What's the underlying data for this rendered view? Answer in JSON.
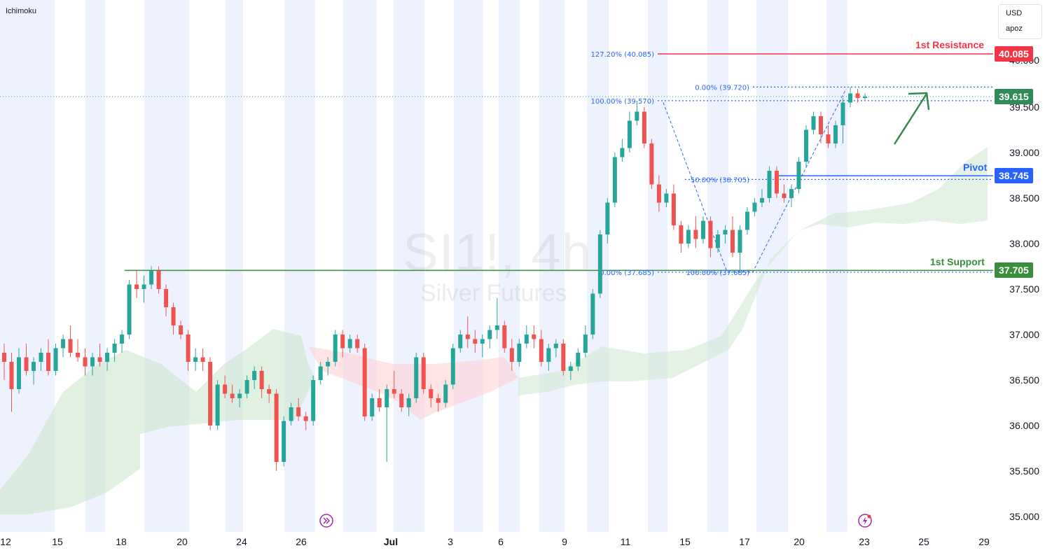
{
  "indicator": "Ichimoku",
  "currency": "USD",
  "scale_mode": "apoz",
  "watermark": {
    "symbol": "SI1!, 4h",
    "name": "Silver Futures"
  },
  "colors": {
    "up": "#26a69a",
    "down": "#ef5350",
    "resistance": "#f23645",
    "pivot": "#2962ff",
    "support": "#388e3c",
    "current": "#2e8b57",
    "fib": "#2962ff",
    "cloud_bull": "#c8e6c9",
    "cloud_bear": "#ffcdd2",
    "session_band": "#e8edfd",
    "arrow": "#2e8b4a"
  },
  "levels": {
    "resistance": {
      "label": "1st Resistance",
      "value": "40.085"
    },
    "pivot": {
      "label": "Pivot",
      "value": "38.745"
    },
    "support": {
      "label": "1st Support",
      "value": "37.705"
    },
    "current": {
      "value": "39.615"
    }
  },
  "fib_labels": {
    "ext": "127.20% (40.085)",
    "top_a": "100.00% (39.570)",
    "top_b": "0.00% (39.720)",
    "mid": "50.00% (38.705)",
    "low_a": "0.00% (37.685)",
    "low_b": "100.00% (37.685)"
  },
  "icons": {
    "left": "fast-forward-icon",
    "right": "lightning-icon"
  },
  "chart_data": {
    "type": "candlestick",
    "title": "SI1!, 4h",
    "subtitle": "Silver Futures",
    "y_axis": {
      "ticks": [
        "35.000",
        "35.500",
        "36.000",
        "36.500",
        "37.000",
        "37.500",
        "38.000",
        "38.500",
        "39.000",
        "39.500",
        "40.000"
      ],
      "ylim": [
        34.8,
        40.4
      ]
    },
    "x_axis": {
      "ticks": [
        "12",
        "15",
        "18",
        "20",
        "24",
        "26",
        "Jul",
        "3",
        "6",
        "9",
        "11",
        "15",
        "17",
        "20",
        "23",
        "25",
        "29"
      ]
    },
    "horizontal_levels": [
      {
        "name": "1st Resistance",
        "value": 40.085
      },
      {
        "name": "Pivot",
        "value": 38.745
      },
      {
        "name": "1st Support",
        "value": 37.705
      }
    ],
    "last_price": 39.615,
    "fibonacci": [
      {
        "label": "127.20%",
        "value": 40.085
      },
      {
        "label": "100.00%",
        "value": 39.57
      },
      {
        "label": "0.00%",
        "value": 39.72
      },
      {
        "label": "50.00%",
        "value": 38.705
      },
      {
        "label": "0.00%",
        "value": 37.685
      },
      {
        "label": "100.00%",
        "value": 37.685
      }
    ],
    "candles": [
      [
        36.8,
        36.9,
        36.5,
        36.7
      ],
      [
        36.7,
        36.8,
        36.15,
        36.4
      ],
      [
        36.4,
        36.85,
        36.35,
        36.75
      ],
      [
        36.75,
        36.9,
        36.55,
        36.6
      ],
      [
        36.6,
        36.75,
        36.45,
        36.7
      ],
      [
        36.7,
        36.85,
        36.6,
        36.8
      ],
      [
        36.8,
        36.95,
        36.55,
        36.6
      ],
      [
        36.6,
        36.9,
        36.55,
        36.85
      ],
      [
        36.85,
        37.0,
        36.75,
        36.95
      ],
      [
        36.95,
        37.1,
        36.75,
        36.8
      ],
      [
        36.8,
        36.95,
        36.7,
        36.75
      ],
      [
        36.75,
        36.85,
        36.55,
        36.65
      ],
      [
        36.65,
        36.8,
        36.55,
        36.75
      ],
      [
        36.75,
        36.9,
        36.65,
        36.7
      ],
      [
        36.7,
        36.85,
        36.6,
        36.8
      ],
      [
        36.8,
        36.95,
        36.7,
        36.9
      ],
      [
        36.9,
        37.05,
        36.8,
        37.0
      ],
      [
        37.0,
        37.6,
        36.95,
        37.55
      ],
      [
        37.55,
        37.7,
        37.4,
        37.5
      ],
      [
        37.5,
        37.65,
        37.35,
        37.55
      ],
      [
        37.55,
        37.75,
        37.5,
        37.7
      ],
      [
        37.7,
        37.75,
        37.45,
        37.5
      ],
      [
        37.5,
        37.55,
        37.2,
        37.3
      ],
      [
        37.3,
        37.35,
        37.0,
        37.1
      ],
      [
        37.1,
        37.15,
        36.95,
        37.0
      ],
      [
        37.0,
        37.05,
        36.6,
        36.7
      ],
      [
        36.7,
        36.85,
        36.6,
        36.75
      ],
      [
        36.75,
        36.85,
        36.6,
        36.7
      ],
      [
        36.7,
        36.75,
        35.95,
        36.0
      ],
      [
        36.0,
        36.5,
        35.95,
        36.45
      ],
      [
        36.45,
        36.55,
        36.3,
        36.35
      ],
      [
        36.35,
        36.45,
        36.25,
        36.3
      ],
      [
        36.3,
        36.4,
        36.2,
        36.35
      ],
      [
        36.35,
        36.55,
        36.3,
        36.5
      ],
      [
        36.5,
        36.65,
        36.4,
        36.6
      ],
      [
        36.6,
        36.65,
        36.3,
        36.4
      ],
      [
        36.4,
        36.45,
        36.25,
        36.35
      ],
      [
        36.35,
        36.4,
        35.5,
        35.6
      ],
      [
        35.6,
        36.1,
        35.55,
        36.05
      ],
      [
        36.05,
        36.25,
        36.0,
        36.2
      ],
      [
        36.2,
        36.3,
        36.05,
        36.1
      ],
      [
        36.1,
        36.15,
        35.95,
        36.05
      ],
      [
        36.05,
        36.55,
        36.0,
        36.5
      ],
      [
        36.5,
        36.7,
        36.45,
        36.65
      ],
      [
        36.65,
        36.75,
        36.55,
        36.7
      ],
      [
        36.7,
        37.05,
        36.65,
        37.0
      ],
      [
        37.0,
        37.05,
        36.75,
        36.85
      ],
      [
        36.85,
        37.0,
        36.8,
        36.95
      ],
      [
        36.95,
        37.0,
        36.8,
        36.85
      ],
      [
        36.85,
        36.9,
        36.05,
        36.1
      ],
      [
        36.1,
        36.35,
        36.05,
        36.3
      ],
      [
        36.3,
        36.4,
        36.15,
        36.2
      ],
      [
        36.2,
        36.45,
        35.6,
        36.4
      ],
      [
        36.4,
        36.6,
        36.3,
        36.35
      ],
      [
        36.35,
        36.4,
        36.15,
        36.2
      ],
      [
        36.2,
        36.35,
        36.1,
        36.3
      ],
      [
        36.3,
        36.8,
        36.25,
        36.75
      ],
      [
        36.75,
        36.8,
        36.35,
        36.4
      ],
      [
        36.4,
        36.45,
        36.2,
        36.3
      ],
      [
        36.3,
        36.35,
        36.15,
        36.25
      ],
      [
        36.25,
        36.5,
        36.2,
        36.45
      ],
      [
        36.45,
        36.9,
        36.4,
        36.85
      ],
      [
        36.85,
        37.05,
        36.8,
        37.0
      ],
      [
        37.0,
        37.2,
        36.85,
        36.95
      ],
      [
        36.95,
        37.05,
        36.8,
        36.9
      ],
      [
        36.9,
        37.0,
        36.75,
        36.95
      ],
      [
        36.95,
        37.1,
        36.85,
        37.05
      ],
      [
        37.05,
        37.4,
        36.95,
        37.1
      ],
      [
        37.1,
        37.15,
        36.8,
        36.85
      ],
      [
        36.85,
        36.95,
        36.6,
        36.7
      ],
      [
        36.7,
        36.95,
        36.65,
        36.9
      ],
      [
        36.9,
        37.1,
        36.85,
        37.0
      ],
      [
        37.0,
        37.1,
        36.85,
        36.95
      ],
      [
        36.95,
        37.05,
        36.65,
        36.7
      ],
      [
        36.7,
        36.9,
        36.6,
        36.85
      ],
      [
        36.85,
        36.95,
        36.75,
        36.9
      ],
      [
        36.9,
        36.95,
        36.55,
        36.6
      ],
      [
        36.6,
        36.7,
        36.5,
        36.65
      ],
      [
        36.65,
        36.85,
        36.6,
        36.8
      ],
      [
        36.8,
        37.1,
        36.75,
        37.0
      ],
      [
        37.0,
        37.5,
        36.95,
        37.45
      ],
      [
        37.45,
        38.15,
        37.4,
        38.1
      ],
      [
        38.1,
        38.5,
        38.0,
        38.45
      ],
      [
        38.45,
        39.0,
        38.4,
        38.95
      ],
      [
        38.95,
        39.15,
        38.9,
        39.05
      ],
      [
        39.05,
        39.45,
        39.0,
        39.35
      ],
      [
        39.35,
        39.57,
        39.3,
        39.45
      ],
      [
        39.45,
        39.5,
        39.05,
        39.1
      ],
      [
        39.1,
        39.15,
        38.6,
        38.65
      ],
      [
        38.65,
        38.75,
        38.35,
        38.45
      ],
      [
        38.45,
        38.6,
        38.4,
        38.55
      ],
      [
        38.55,
        38.65,
        38.15,
        38.2
      ],
      [
        38.2,
        38.25,
        37.9,
        38.0
      ],
      [
        38.0,
        38.2,
        37.95,
        38.15
      ],
      [
        38.15,
        38.3,
        37.95,
        38.05
      ],
      [
        38.05,
        38.3,
        38.0,
        38.25
      ],
      [
        38.25,
        38.3,
        37.85,
        37.95
      ],
      [
        37.95,
        38.15,
        37.9,
        38.1
      ],
      [
        38.1,
        38.2,
        38.0,
        38.15
      ],
      [
        38.15,
        38.3,
        37.85,
        37.9
      ],
      [
        37.9,
        38.2,
        37.69,
        38.15
      ],
      [
        38.15,
        38.4,
        38.1,
        38.35
      ],
      [
        38.35,
        38.5,
        38.3,
        38.45
      ],
      [
        38.45,
        38.6,
        38.4,
        38.5
      ],
      [
        38.5,
        38.85,
        38.45,
        38.8
      ],
      [
        38.8,
        38.85,
        38.5,
        38.55
      ],
      [
        38.55,
        38.65,
        38.45,
        38.5
      ],
      [
        38.5,
        38.65,
        38.4,
        38.6
      ],
      [
        38.6,
        38.95,
        38.55,
        38.9
      ],
      [
        38.9,
        39.3,
        38.85,
        39.25
      ],
      [
        39.25,
        39.45,
        39.2,
        39.4
      ],
      [
        39.4,
        39.45,
        39.1,
        39.2
      ],
      [
        39.2,
        39.3,
        39.05,
        39.1
      ],
      [
        39.1,
        39.35,
        39.05,
        39.3
      ],
      [
        39.3,
        39.6,
        39.1,
        39.55
      ],
      [
        39.55,
        39.72,
        39.5,
        39.65
      ],
      [
        39.65,
        39.7,
        39.55,
        39.6
      ],
      [
        39.6,
        39.65,
        39.58,
        39.615
      ]
    ]
  }
}
